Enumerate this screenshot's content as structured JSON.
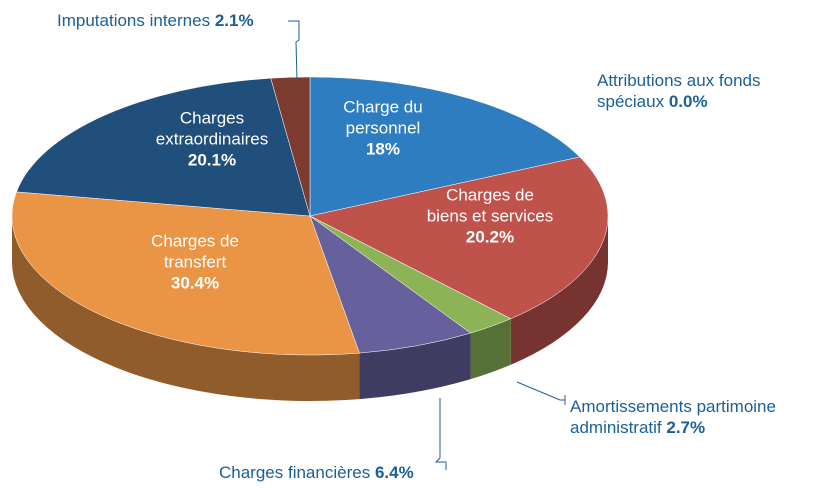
{
  "chart_data": {
    "type": "pie3d",
    "categories": [
      "Charge du personnel",
      "Charges de biens et services",
      "Attributions aux fonds spéciaux",
      "Amortissements partimoine administratif",
      "Charges financières",
      "Charges de transfert",
      "Charges extraordinaires",
      "Imputations internes"
    ],
    "values": [
      18,
      20.2,
      0.0,
      2.7,
      6.4,
      30.4,
      20.1,
      2.1
    ],
    "value_labels": [
      "18%",
      "20.2%",
      "0.0%",
      "2.7%",
      "6.4%",
      "30.4%",
      "20.1%",
      "2.1%"
    ],
    "colors": [
      "#2e7dc1",
      "#bf534c",
      "#2f6fa6",
      "#8cb457",
      "#66619c",
      "#ea9445",
      "#1f4f7a",
      "#7d3b2f"
    ]
  }
}
